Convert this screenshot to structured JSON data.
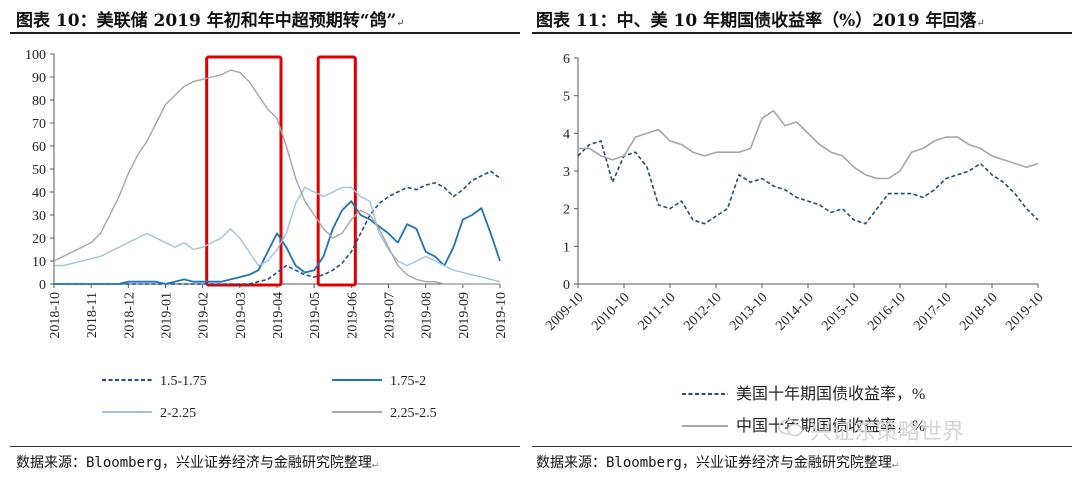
{
  "left_panel": {
    "title": "图表 10：美联储 2019 年初和年中超预期转“鸽”",
    "source": "数据来源：Bloomberg，兴业证券经济与金融研究院整理"
  },
  "right_panel": {
    "title": "图表 11：中、美 10 年期国债收益率（%）2019 年回落",
    "source": "数据来源：Bloomberg，兴业证券经济与金融研究院整理"
  },
  "watermark": {
    "text": "兴证东策略世界",
    "icon": "wechat-bubble-icon"
  },
  "chart_data": [
    {
      "type": "line",
      "title": "",
      "xlabel": "",
      "ylabel": "",
      "ylim": [
        0,
        100
      ],
      "yticks": [
        0,
        10,
        20,
        30,
        40,
        50,
        60,
        70,
        80,
        90,
        100
      ],
      "x_tick_labels": [
        "2018-10",
        "2018-11",
        "2018-12",
        "2019-01",
        "2019-02",
        "2019-03",
        "2019-04",
        "2019-05",
        "2019-06",
        "2019-07",
        "2019-08",
        "2019-09",
        "2019-10"
      ],
      "x": [
        0,
        0.25,
        0.5,
        0.75,
        1,
        1.25,
        1.5,
        1.75,
        2,
        2.25,
        2.5,
        2.75,
        3,
        3.25,
        3.5,
        3.75,
        4,
        4.25,
        4.5,
        4.75,
        5,
        5.25,
        5.5,
        5.75,
        6,
        6.25,
        6.5,
        6.75,
        7,
        7.25,
        7.5,
        7.75,
        8,
        8.25,
        8.5,
        8.75,
        9,
        9.25,
        9.5,
        9.75,
        10,
        10.25,
        10.5,
        10.75,
        11,
        11.25,
        11.5,
        11.75,
        12
      ],
      "legend_position": "bottom",
      "grid": false,
      "highlight_boxes": [
        {
          "x_start": "2019-02",
          "x_end": "2019-04",
          "color": "#e00000"
        },
        {
          "x_start": "2019-05",
          "x_end": "2019-06",
          "color": "#e00000"
        }
      ],
      "series": [
        {
          "name": "1.5-1.75",
          "color": "#1f4e8a",
          "style": "dashed",
          "width": 1.6,
          "values": [
            0,
            0,
            0,
            0,
            0,
            0,
            0,
            0,
            0,
            0,
            0,
            0,
            0,
            0,
            0,
            0,
            0,
            0,
            0,
            0,
            0,
            0,
            1,
            2,
            5,
            8,
            6,
            4,
            3,
            4,
            6,
            9,
            14,
            22,
            30,
            35,
            38,
            40,
            42,
            41,
            43,
            44,
            42,
            38,
            41,
            45,
            47,
            49,
            46
          ]
        },
        {
          "name": "1.75-2",
          "color": "#1e73be",
          "style": "solid",
          "width": 1.8,
          "values": [
            0,
            0,
            0,
            0,
            0,
            0,
            0,
            0,
            1,
            1,
            1,
            1,
            0,
            1,
            2,
            1,
            1,
            1,
            1,
            2,
            3,
            4,
            6,
            14,
            22,
            16,
            8,
            5,
            6,
            12,
            24,
            32,
            36,
            30,
            28,
            25,
            22,
            18,
            26,
            24,
            14,
            12,
            8,
            16,
            28,
            30,
            33,
            22,
            10
          ]
        },
        {
          "name": "2-2.25",
          "color": "#9cc3e3",
          "style": "solid",
          "width": 1.4,
          "values": [
            8,
            8,
            9,
            10,
            11,
            12,
            14,
            16,
            18,
            20,
            22,
            20,
            18,
            16,
            18,
            15,
            16,
            18,
            20,
            24,
            20,
            14,
            8,
            10,
            15,
            22,
            35,
            42,
            40,
            38,
            40,
            42,
            42,
            38,
            36,
            22,
            15,
            10,
            8,
            10,
            12,
            10,
            8,
            6,
            5,
            4,
            3,
            2,
            1
          ]
        },
        {
          "name": "2.25-2.5",
          "color": "#a6a6a6",
          "style": "solid",
          "width": 1.4,
          "values": [
            10,
            12,
            14,
            16,
            18,
            22,
            30,
            38,
            48,
            56,
            62,
            70,
            78,
            82,
            86,
            88,
            89,
            90,
            91,
            93,
            92,
            88,
            82,
            76,
            72,
            60,
            46,
            36,
            30,
            24,
            20,
            22,
            28,
            32,
            30,
            24,
            16,
            8,
            4,
            2,
            1,
            1,
            0,
            0,
            0,
            0,
            0,
            0,
            0
          ]
        }
      ]
    },
    {
      "type": "line",
      "title": "",
      "xlabel": "",
      "ylabel": "",
      "ylim": [
        0,
        6
      ],
      "yticks": [
        0,
        1,
        2,
        3,
        4,
        5,
        6
      ],
      "x_tick_labels": [
        "2009-10",
        "2010-10",
        "2011-10",
        "2012-10",
        "2013-10",
        "2014-10",
        "2015-10",
        "2016-10",
        "2017-10",
        "2018-10",
        "2019-10"
      ],
      "x": [
        0,
        0.25,
        0.5,
        0.75,
        1,
        1.25,
        1.5,
        1.75,
        2,
        2.25,
        2.5,
        2.75,
        3,
        3.25,
        3.5,
        3.75,
        4,
        4.25,
        4.5,
        4.75,
        5,
        5.25,
        5.5,
        5.75,
        6,
        6.25,
        6.5,
        6.75,
        7,
        7.25,
        7.5,
        7.75,
        8,
        8.25,
        8.5,
        8.75,
        9,
        9.25,
        9.5,
        9.75,
        10
      ],
      "legend_position": "bottom",
      "grid": false,
      "series": [
        {
          "name": "美国十年期国债收益率，%",
          "color": "#1f4e79",
          "style": "dashed",
          "width": 1.6,
          "values": [
            3.4,
            3.7,
            3.8,
            2.7,
            3.4,
            3.5,
            3.1,
            2.1,
            2.0,
            2.2,
            1.7,
            1.6,
            1.8,
            2.0,
            2.9,
            2.7,
            2.8,
            2.6,
            2.5,
            2.3,
            2.2,
            2.1,
            1.9,
            2.0,
            1.7,
            1.6,
            2.0,
            2.4,
            2.4,
            2.4,
            2.3,
            2.5,
            2.8,
            2.9,
            3.0,
            3.2,
            2.9,
            2.7,
            2.4,
            2.0,
            1.7
          ]
        },
        {
          "name": "中国十年期国债收益率，%",
          "color": "#a6a6a6",
          "style": "solid",
          "width": 1.6,
          "values": [
            3.6,
            3.6,
            3.4,
            3.3,
            3.4,
            3.9,
            4.0,
            4.1,
            3.8,
            3.7,
            3.5,
            3.4,
            3.5,
            3.5,
            3.5,
            3.6,
            4.4,
            4.6,
            4.2,
            4.3,
            4.0,
            3.7,
            3.5,
            3.4,
            3.1,
            2.9,
            2.8,
            2.8,
            3.0,
            3.5,
            3.6,
            3.8,
            3.9,
            3.9,
            3.7,
            3.6,
            3.4,
            3.3,
            3.2,
            3.1,
            3.2
          ]
        }
      ]
    }
  ]
}
